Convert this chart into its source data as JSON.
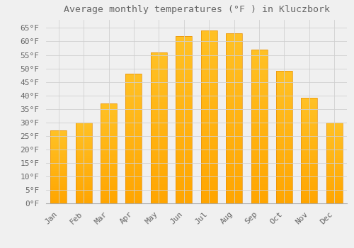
{
  "title": "Average monthly temperatures (°F ) in Kluczbork",
  "months": [
    "Jan",
    "Feb",
    "Mar",
    "Apr",
    "May",
    "Jun",
    "Jul",
    "Aug",
    "Sep",
    "Oct",
    "Nov",
    "Dec"
  ],
  "values": [
    27,
    30,
    37,
    48,
    56,
    62,
    64,
    63,
    57,
    49,
    39,
    30
  ],
  "bar_color_top": "#FFC125",
  "bar_color_bottom": "#FFA500",
  "background_color": "#f0f0f0",
  "grid_color": "#d0d0d0",
  "text_color": "#666666",
  "ylim": [
    0,
    68
  ],
  "yticks": [
    0,
    5,
    10,
    15,
    20,
    25,
    30,
    35,
    40,
    45,
    50,
    55,
    60,
    65
  ],
  "title_fontsize": 9.5,
  "tick_fontsize": 8,
  "font_family": "monospace",
  "bar_width": 0.65
}
